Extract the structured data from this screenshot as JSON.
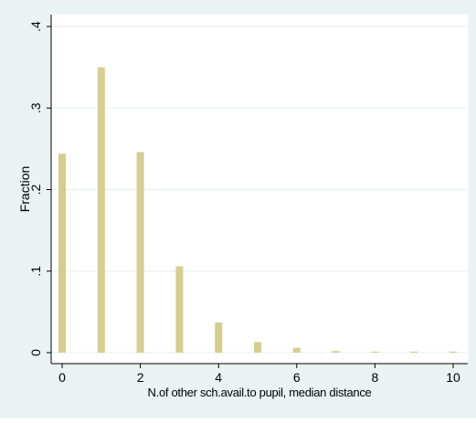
{
  "chart_data": {
    "type": "bar",
    "title": "",
    "xlabel": "N.of other sch.avail.to pupil, median distance",
    "ylabel": "Fraction",
    "x": [
      0,
      1,
      2,
      3,
      4,
      5,
      6,
      7,
      8,
      9,
      10
    ],
    "values": [
      0.244,
      0.35,
      0.246,
      0.106,
      0.037,
      0.013,
      0.006,
      0.002,
      0.001,
      0.001,
      0.001
    ],
    "xlim": [
      -0.3,
      10.3
    ],
    "ylim": [
      0,
      0.4
    ],
    "xticks": [
      0,
      2,
      4,
      6,
      8,
      10
    ],
    "xtick_labels": [
      "0",
      "2",
      "4",
      "6",
      "8",
      "10"
    ],
    "yticks": [
      0,
      0.1,
      0.2,
      0.3,
      0.4
    ],
    "ytick_labels": [
      "0",
      ".1",
      ".2",
      ".3",
      ".4"
    ],
    "grid": "horizontal",
    "colors": {
      "background": "#eaf2f3",
      "plot_background": "#ffffff",
      "bar": "#d5cd91",
      "grid": "#e8eded",
      "axis": "#000000"
    }
  }
}
